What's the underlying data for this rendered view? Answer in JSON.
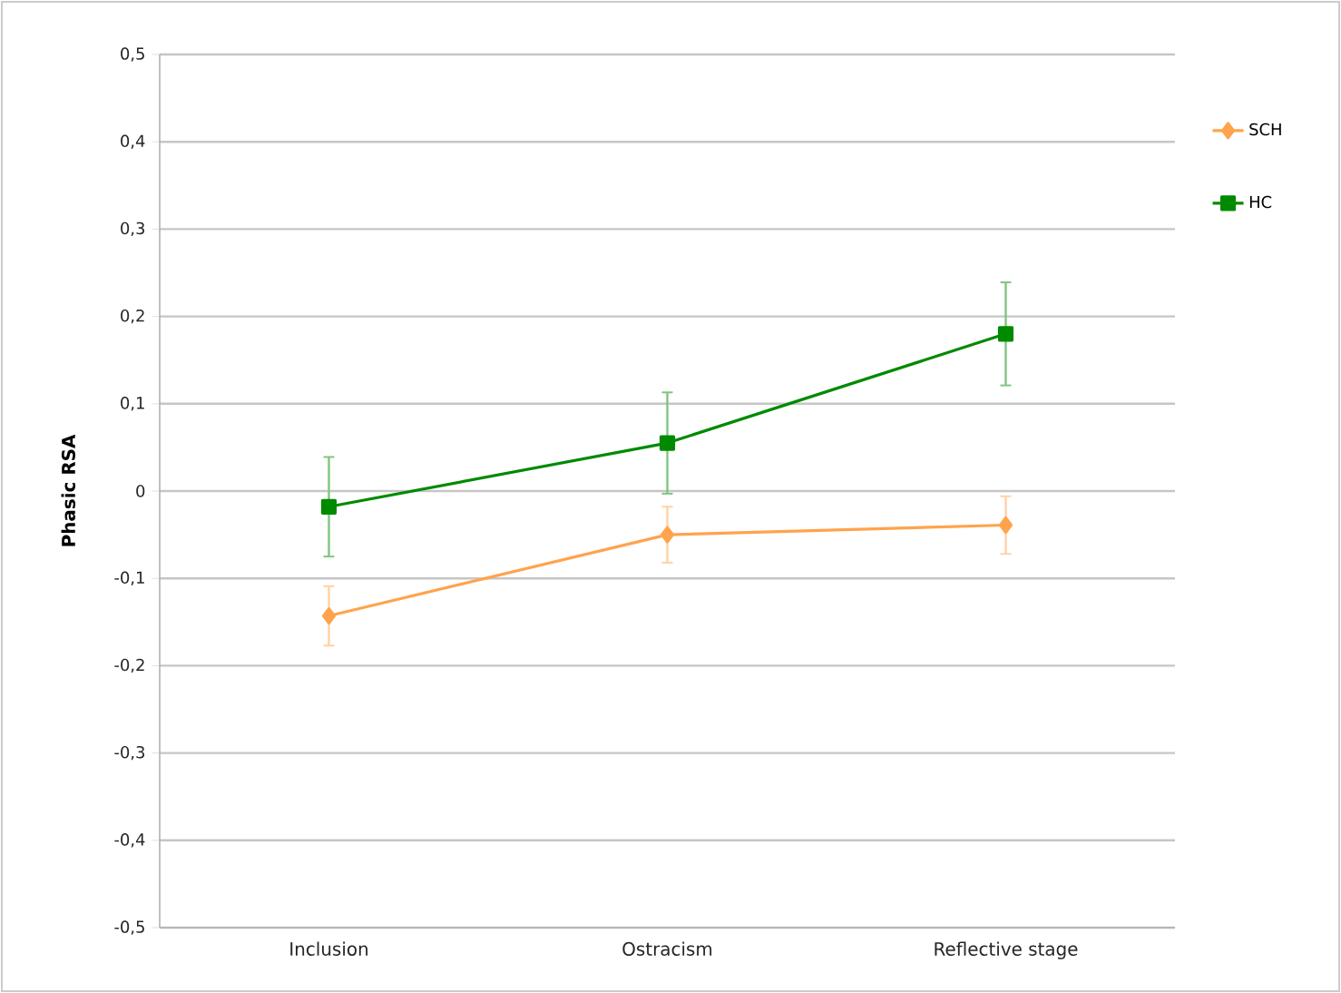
{
  "chart_data": {
    "type": "line",
    "ylabel": "**Phasic RSA**",
    "categories": [
      "Inclusion",
      "Ostracism",
      "Reflective stage"
    ],
    "series": [
      {
        "name": "SCH",
        "color": "#ffa34d",
        "marker": "diamond",
        "values": [
          -0.143,
          -0.05,
          -0.039
        ],
        "errors": [
          0.034,
          0.032,
          0.033
        ]
      },
      {
        "name": "HC",
        "color": "#008a00",
        "marker": "square",
        "values": [
          -0.018,
          0.055,
          0.18
        ],
        "errors": [
          0.057,
          0.058,
          0.059
        ]
      }
    ],
    "ylim": [
      -0.5,
      0.5
    ],
    "yticks": [
      {
        "value": -0.5,
        "label": "-0,5"
      },
      {
        "value": -0.4,
        "label": "-0,4"
      },
      {
        "value": -0.3,
        "label": "-0,3"
      },
      {
        "value": -0.2,
        "label": "-0,2"
      },
      {
        "value": -0.1,
        "label": "-0,1"
      },
      0,
      {
        "value": 0.1,
        "label": "0,1"
      },
      {
        "value": 0.2,
        "label": "0,2"
      },
      {
        "value": 0.3,
        "label": "0,3"
      },
      {
        "value": 0.4,
        "label": "0,4"
      },
      {
        "value": 0.5,
        "label": "0,5"
      }
    ],
    "grid": "y",
    "legend": "top right"
  }
}
